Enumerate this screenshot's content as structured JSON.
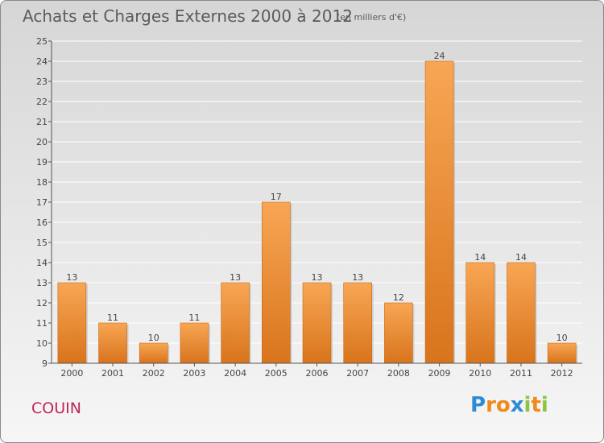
{
  "header": {
    "title": "Achats et Charges Externes 2000 à 2012",
    "subtitle": "(en milliers d'€)"
  },
  "commune": "COUIN",
  "logo": {
    "text": "Proxiti",
    "letters": [
      {
        "ch": "P",
        "color": "#2e8bd6"
      },
      {
        "ch": "r",
        "color": "#f08a1c"
      },
      {
        "ch": "o",
        "color": "#f08a1c"
      },
      {
        "ch": "x",
        "color": "#2e8bd6"
      },
      {
        "ch": "i",
        "color": "#8cc63f"
      },
      {
        "ch": "t",
        "color": "#f08a1c"
      },
      {
        "ch": "i",
        "color": "#8cc63f"
      }
    ]
  },
  "colors": {
    "bar_light": "#f8a654",
    "bar_dark": "#d8741c",
    "grid": "#ffffff",
    "axis": "#555555",
    "title": "#5b5b5b",
    "commune": "#c0245c"
  },
  "chart_data": {
    "type": "bar",
    "title": "Achats et Charges Externes 2000 à 2012",
    "subtitle": "(en milliers d'€)",
    "categories": [
      "2000",
      "2001",
      "2002",
      "2003",
      "2004",
      "2005",
      "2006",
      "2007",
      "2008",
      "2009",
      "2010",
      "2011",
      "2012"
    ],
    "values": [
      13,
      11,
      10,
      11,
      13,
      17,
      13,
      13,
      12,
      24,
      14,
      14,
      10
    ],
    "ylim": [
      9,
      25
    ],
    "yticks": [
      9,
      10,
      11,
      12,
      13,
      14,
      15,
      16,
      17,
      18,
      19,
      20,
      21,
      22,
      23,
      24,
      25
    ],
    "grid": true,
    "xlabel": "",
    "ylabel": ""
  }
}
